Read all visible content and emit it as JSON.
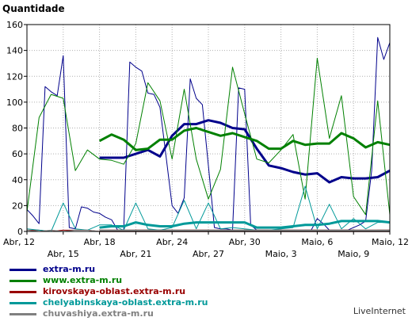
{
  "chart_data": {
    "type": "line",
    "title": "",
    "ylabel": "Quantidade",
    "xlabel": "",
    "ylim": [
      0,
      160
    ],
    "yticks": [
      0,
      20,
      40,
      60,
      80,
      100,
      120,
      140,
      160
    ],
    "grid": true,
    "legend_position": "bottom",
    "x_days": 30,
    "x_ticks": [
      {
        "label": "Abr, 12",
        "day": 0,
        "row": 1
      },
      {
        "label": "Abr, 15",
        "day": 3,
        "row": 2
      },
      {
        "label": "Abr, 18",
        "day": 6,
        "row": 1
      },
      {
        "label": "Abr, 21",
        "day": 9,
        "row": 2
      },
      {
        "label": "Abr, 24",
        "day": 12,
        "row": 1
      },
      {
        "label": "Abr, 27",
        "day": 15,
        "row": 2
      },
      {
        "label": "Abr, 30",
        "day": 18,
        "row": 1
      },
      {
        "label": "Maio, 3",
        "day": 21,
        "row": 2
      },
      {
        "label": "Maio, 6",
        "day": 24,
        "row": 1
      },
      {
        "label": "Maio, 9",
        "day": 27,
        "row": 2
      },
      {
        "label": "Maio, 12",
        "day": 30,
        "row": 1
      }
    ],
    "series": [
      {
        "name": "extra-m.ru",
        "color": "#00008b",
        "x": [
          0,
          0.5,
          1,
          1.5,
          2,
          2.5,
          3,
          3.5,
          4,
          4.5,
          5,
          5.5,
          6,
          6.5,
          7,
          7.5,
          8,
          8.5,
          9,
          9.5,
          10,
          10.5,
          11,
          11.5,
          12,
          12.5,
          13,
          13.5,
          14,
          14.5,
          15,
          15.5,
          16,
          16.5,
          17,
          17.5,
          18,
          18.5,
          19,
          19.5,
          20,
          20.5,
          21,
          21.5,
          22,
          22.5,
          23,
          23.5,
          24,
          24.5,
          25,
          25.5,
          26,
          26.5,
          27,
          27.5,
          28,
          28.5,
          29,
          29.5,
          30
        ],
        "y": [
          17,
          12,
          6,
          112,
          108,
          105,
          136,
          3,
          2,
          19,
          18,
          15,
          14,
          11,
          9,
          1,
          1,
          131,
          127,
          124,
          107,
          106,
          96,
          58,
          20,
          14,
          26,
          118,
          103,
          98,
          51,
          3,
          2,
          2,
          1,
          111,
          110,
          5,
          1,
          1,
          1,
          1,
          1,
          1,
          1,
          1,
          1,
          1,
          10,
          6,
          1,
          1,
          1,
          1,
          3,
          5,
          8,
          47,
          150,
          133,
          146
        ],
        "smooth_from": 6,
        "smooth": [
          [
            6,
            57
          ],
          [
            7,
            57
          ],
          [
            8,
            57
          ],
          [
            9,
            60
          ],
          [
            10,
            63
          ],
          [
            11,
            58
          ],
          [
            12,
            74
          ],
          [
            13,
            83
          ],
          [
            14,
            83
          ],
          [
            15,
            86
          ],
          [
            16,
            84
          ],
          [
            17,
            80
          ],
          [
            18,
            79
          ],
          [
            19,
            64
          ],
          [
            20,
            51
          ],
          [
            21,
            49
          ],
          [
            22,
            46
          ],
          [
            23,
            44
          ],
          [
            24,
            45
          ],
          [
            25,
            38
          ],
          [
            26,
            42
          ],
          [
            27,
            41
          ],
          [
            28,
            41
          ],
          [
            29,
            42
          ],
          [
            30,
            47
          ]
        ]
      },
      {
        "name": "www.extra-m.ru",
        "color": "#008000",
        "x": [
          0,
          1,
          2,
          3,
          4,
          5,
          6,
          7,
          8,
          9,
          10,
          11,
          12,
          13,
          14,
          15,
          16,
          17,
          18,
          19,
          20,
          21,
          22,
          23,
          24,
          25,
          26,
          27,
          28,
          29,
          30
        ],
        "y": [
          15,
          88,
          106,
          103,
          47,
          63,
          56,
          55,
          52,
          68,
          115,
          101,
          56,
          110,
          56,
          25,
          48,
          127,
          91,
          56,
          53,
          63,
          75,
          25,
          134,
          72,
          105,
          27,
          13,
          101,
          13
        ],
        "smooth": [
          [
            6,
            70
          ],
          [
            7,
            75
          ],
          [
            8,
            71
          ],
          [
            9,
            63
          ],
          [
            10,
            64
          ],
          [
            11,
            71
          ],
          [
            12,
            71
          ],
          [
            13,
            78
          ],
          [
            14,
            80
          ],
          [
            15,
            77
          ],
          [
            16,
            74
          ],
          [
            17,
            76
          ],
          [
            18,
            73
          ],
          [
            19,
            70
          ],
          [
            20,
            64
          ],
          [
            21,
            64
          ],
          [
            22,
            70
          ],
          [
            23,
            67
          ],
          [
            24,
            68
          ],
          [
            25,
            68
          ],
          [
            26,
            76
          ],
          [
            27,
            72
          ],
          [
            28,
            65
          ],
          [
            29,
            69
          ],
          [
            30,
            67
          ]
        ]
      },
      {
        "name": "kirovskaya-oblast.extra-m.ru",
        "color": "#990000",
        "x": [
          0,
          1,
          2,
          3,
          4,
          5,
          6,
          7,
          8,
          9,
          10,
          11,
          12,
          13,
          14,
          15,
          16,
          17,
          18,
          19,
          20,
          21,
          22,
          23,
          24,
          25,
          26,
          27,
          28,
          29,
          30
        ],
        "y": [
          1,
          1,
          0,
          1,
          1,
          1,
          0,
          0,
          0,
          1,
          1,
          1,
          0,
          1,
          1,
          1,
          0,
          0,
          1,
          1,
          1,
          0,
          0,
          1,
          1,
          0,
          1,
          1,
          0,
          1,
          1
        ],
        "smooth": [
          [
            6,
            0.5
          ],
          [
            30,
            0.5
          ]
        ]
      },
      {
        "name": "chelyabinskaya-oblast.extra-m.ru",
        "color": "#009999",
        "x": [
          0,
          1,
          2,
          3,
          4,
          5,
          6,
          7,
          8,
          9,
          10,
          11,
          12,
          13,
          14,
          15,
          16,
          17,
          18,
          19,
          20,
          21,
          22,
          23,
          24,
          25,
          26,
          27,
          28,
          29,
          30
        ],
        "y": [
          2,
          1,
          0,
          22,
          2,
          1,
          5,
          5,
          1,
          22,
          2,
          1,
          3,
          24,
          2,
          22,
          2,
          3,
          2,
          1,
          1,
          2,
          3,
          35,
          2,
          21,
          2,
          10,
          2,
          7,
          7
        ],
        "smooth": [
          [
            6,
            3
          ],
          [
            7,
            4
          ],
          [
            8,
            4
          ],
          [
            9,
            7
          ],
          [
            10,
            5
          ],
          [
            11,
            4
          ],
          [
            12,
            4
          ],
          [
            13,
            6
          ],
          [
            14,
            7
          ],
          [
            15,
            7
          ],
          [
            16,
            7
          ],
          [
            17,
            7
          ],
          [
            18,
            7
          ],
          [
            19,
            3
          ],
          [
            20,
            3
          ],
          [
            21,
            3
          ],
          [
            22,
            4
          ],
          [
            23,
            5
          ],
          [
            24,
            5
          ],
          [
            25,
            6
          ],
          [
            26,
            8
          ],
          [
            27,
            8
          ],
          [
            28,
            8
          ],
          [
            29,
            8
          ],
          [
            30,
            7
          ]
        ]
      },
      {
        "name": "chuvashiya.extra-m.ru",
        "color": "#808080",
        "x": [
          0,
          1,
          2,
          3,
          4,
          5,
          6,
          7,
          8,
          9,
          10,
          11,
          12,
          13,
          14,
          15,
          16,
          17,
          18,
          19,
          20,
          21,
          22,
          23,
          24,
          25,
          26,
          27,
          28,
          29,
          30
        ],
        "y": [
          1,
          0,
          1,
          0,
          1,
          1,
          0,
          0,
          1,
          0,
          1,
          0,
          1,
          0,
          0,
          1,
          0,
          1,
          0,
          0,
          1,
          0,
          1,
          0,
          0,
          1,
          0,
          1,
          0,
          0,
          1
        ],
        "smooth": [
          [
            6,
            0.5
          ],
          [
            30,
            0.5
          ]
        ]
      }
    ]
  },
  "footer": {
    "brand": "LiveInternet"
  }
}
